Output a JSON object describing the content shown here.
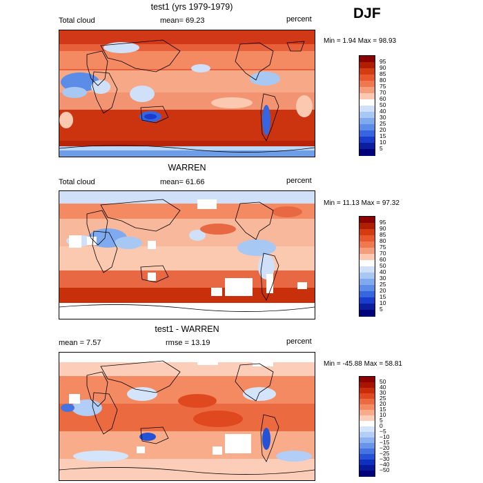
{
  "season": "DJF",
  "panels": [
    {
      "title": "test1 (yrs 1979-1979)",
      "left_label": "Total cloud",
      "center_label": "mean=  69.23",
      "right_label": "percent",
      "minmax": "Min =    1.94 Max =  98.93",
      "colorbar": {
        "levels": [
          "95",
          "90",
          "85",
          "80",
          "75",
          "70",
          "60",
          "50",
          "40",
          "30",
          "25",
          "20",
          "15",
          "10",
          "5"
        ],
        "colors": [
          "#8b0000",
          "#b01e00",
          "#d23c10",
          "#e8582c",
          "#f0784e",
          "#f59e7c",
          "#fbc9b0",
          "#ffffff",
          "#cfe0f8",
          "#a8c8f4",
          "#7faaef",
          "#5a8ce8",
          "#3566df",
          "#1a3ccd",
          "#0a1e9e",
          "#00007a"
        ]
      }
    },
    {
      "title": "WARREN",
      "left_label": "Total cloud",
      "center_label": "mean=  61.66",
      "right_label": "percent",
      "minmax": "Min =   11.13 Max =  97.32",
      "colorbar": {
        "levels": [
          "95",
          "90",
          "85",
          "80",
          "75",
          "70",
          "60",
          "50",
          "40",
          "30",
          "25",
          "20",
          "15",
          "10",
          "5"
        ],
        "colors": [
          "#8b0000",
          "#b01e00",
          "#d23c10",
          "#e8582c",
          "#f0784e",
          "#f59e7c",
          "#fbc9b0",
          "#ffffff",
          "#cfe0f8",
          "#a8c8f4",
          "#7faaef",
          "#5a8ce8",
          "#3566df",
          "#1a3ccd",
          "#0a1e9e",
          "#00007a"
        ]
      }
    },
    {
      "title": "test1 - WARREN",
      "left_label": "mean =    7.57",
      "center_label": "rmse =   13.19",
      "right_label": "percent",
      "minmax": "Min =  -45.88 Max =  58.81",
      "colorbar": {
        "levels": [
          "50",
          "40",
          "30",
          "25",
          "20",
          "15",
          "10",
          "5",
          "0",
          "−5",
          "−10",
          "−15",
          "−20",
          "−25",
          "−30",
          "−40",
          "−50"
        ],
        "colors": [
          "#8b0000",
          "#a81400",
          "#c82c08",
          "#e04820",
          "#ec6a40",
          "#f48a62",
          "#f8ac8a",
          "#fccdb8",
          "#ffffff",
          "#d4e4fa",
          "#b2cdf6",
          "#8cb2f0",
          "#6894ea",
          "#4474e2",
          "#2452d6",
          "#0e30c0",
          "#061a9a",
          "#00007a"
        ]
      }
    }
  ]
}
